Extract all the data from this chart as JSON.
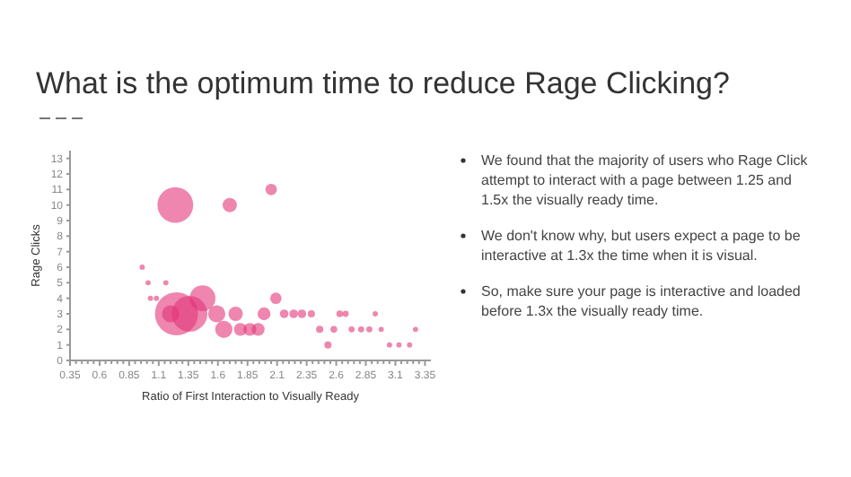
{
  "chart_data": {
    "type": "bubble",
    "title": "What is the optimum time to reduce Rage Clicking?",
    "xlabel": "Ratio of First Interaction to Visually Ready",
    "ylabel": "Rage Clicks",
    "x": [
      1.24,
      1.7,
      2.05,
      1.25,
      1.36,
      1.47,
      1.2,
      1.59,
      1.75,
      1.65,
      1.79,
      1.87,
      1.94,
      1.99,
      2.09,
      2.16,
      2.24,
      2.31,
      2.39,
      2.46,
      2.53,
      2.58,
      2.63,
      2.68,
      2.73,
      2.81,
      2.88,
      2.98,
      3.05,
      3.13,
      3.22,
      3.27,
      2.93,
      1.01,
      1.16,
      0.96,
      1.03,
      1.08
    ],
    "values": [
      10,
      10,
      11,
      3,
      3,
      4,
      3,
      3,
      3,
      2,
      2,
      2,
      2,
      3,
      4,
      3,
      3,
      3,
      3,
      2,
      1,
      2,
      3,
      3,
      2,
      2,
      2,
      2,
      1,
      1,
      1,
      2,
      3,
      5,
      5,
      6,
      4,
      4
    ],
    "sizes": [
      0.69,
      0.11,
      0.07,
      1,
      0.69,
      0.36,
      0.16,
      0.16,
      0.11,
      0.16,
      0.09,
      0.09,
      0.09,
      0.09,
      0.07,
      0.04,
      0.04,
      0.04,
      0.028,
      0.028,
      0.028,
      0.025,
      0.025,
      0.02,
      0.02,
      0.02,
      0.02,
      0.015,
      0.015,
      0.015,
      0.015,
      0.015,
      0.015,
      0.015,
      0.015,
      0.015,
      0.015,
      0.015
    ],
    "color": "#e3357a",
    "xlim": [
      0.35,
      3.4
    ],
    "ylim": [
      0,
      13.5
    ],
    "xticks": [
      0.35,
      {
        "value": 0.4,
        "label": null
      },
      {
        "value": 0.45,
        "label": null
      },
      {
        "value": 0.5,
        "label": null
      },
      {
        "value": 0.55,
        "label": null
      },
      0.6,
      {
        "value": 0.65,
        "label": null
      },
      {
        "value": 0.7,
        "label": null
      },
      {
        "value": 0.75,
        "label": null
      },
      {
        "value": 0.8,
        "label": null
      },
      0.85,
      {
        "value": 0.9,
        "label": null
      },
      {
        "value": 0.95,
        "label": null
      },
      {
        "value": 1.0,
        "label": null
      },
      {
        "value": 1.05,
        "label": null
      },
      1.1,
      {
        "value": 1.15,
        "label": null
      },
      {
        "value": 1.2,
        "label": null
      },
      {
        "value": 1.25,
        "label": null
      },
      {
        "value": 1.3,
        "label": null
      },
      1.35,
      {
        "value": 1.4,
        "label": null
      },
      {
        "value": 1.45,
        "label": null
      },
      {
        "value": 1.5,
        "label": null
      },
      {
        "value": 1.55,
        "label": null
      },
      1.6,
      {
        "value": 1.65,
        "label": null
      },
      {
        "value": 1.7,
        "label": null
      },
      {
        "value": 1.75,
        "label": null
      },
      {
        "value": 1.8,
        "label": null
      },
      1.85,
      {
        "value": 1.9,
        "label": null
      },
      {
        "value": 1.95,
        "label": null
      },
      {
        "value": 2.0,
        "label": null
      },
      {
        "value": 2.05,
        "label": null
      },
      2.1,
      {
        "value": 2.15,
        "label": null
      },
      {
        "value": 2.2,
        "label": null
      },
      {
        "value": 2.25,
        "label": null
      },
      {
        "value": 2.3,
        "label": null
      },
      2.35,
      {
        "value": 2.4,
        "label": null
      },
      {
        "value": 2.45,
        "label": null
      },
      {
        "value": 2.5,
        "label": null
      },
      {
        "value": 2.55,
        "label": null
      },
      2.6,
      {
        "value": 2.65,
        "label": null
      },
      {
        "value": 2.7,
        "label": null
      },
      {
        "value": 2.75,
        "label": null
      },
      {
        "value": 2.8,
        "label": null
      },
      2.85,
      {
        "value": 2.9,
        "label": null
      },
      {
        "value": 2.95,
        "label": null
      },
      {
        "value": 3.0,
        "label": null
      },
      {
        "value": 3.05,
        "label": null
      },
      3.1,
      {
        "value": 3.15,
        "label": null
      },
      {
        "value": 3.2,
        "label": null
      },
      {
        "value": 3.25,
        "label": null
      },
      {
        "value": 3.3,
        "label": null
      },
      3.35
    ],
    "yticks": [
      0,
      1,
      2,
      3,
      4,
      5,
      6,
      7,
      8,
      9,
      10,
      11,
      12,
      13
    ],
    "grid": false,
    "annotations": [
      "We found that the majority of users who Rage Click attempt to interact with a page between 1.25 and 1.5x the visually ready time.",
      "We don't know why, but users expect a page to be interactive at 1.3x the time when it is visual.",
      "So, make sure your page is interactive and loaded before 1.3x the visually ready time."
    ]
  }
}
